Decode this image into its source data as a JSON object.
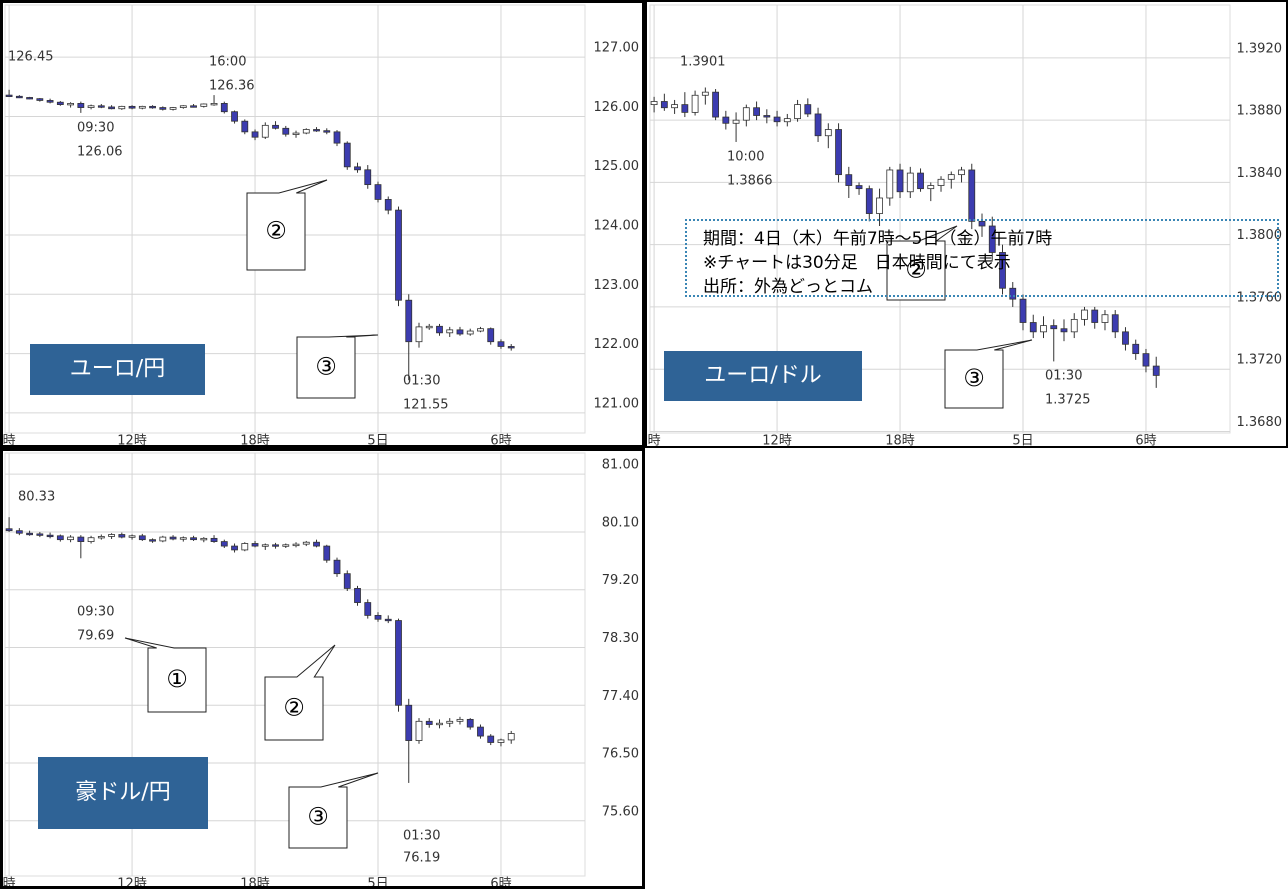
{
  "chart_data": [
    {
      "type": "candlestick",
      "title": "ユーロ/円",
      "x": [
        6,
        6.5,
        7,
        7.5,
        8,
        8.5,
        9,
        9.5,
        10,
        10.5,
        11,
        11.5,
        12,
        12.5,
        13,
        13.5,
        14,
        14.5,
        15,
        15.5,
        16,
        16.5,
        17,
        17.5,
        18,
        18.5,
        19,
        19.5,
        20,
        20.5,
        21,
        21.5,
        22,
        22.5,
        23,
        23.5,
        24,
        24.5,
        25,
        25.5,
        26,
        26.5,
        27,
        27.5,
        28,
        28.5,
        29,
        29.5,
        30,
        30.5
      ],
      "open": [
        126.36,
        126.34,
        126.32,
        126.3,
        126.27,
        126.24,
        126.2,
        126.22,
        126.15,
        126.18,
        126.16,
        126.13,
        126.17,
        126.14,
        126.17,
        126.15,
        126.12,
        126.15,
        126.18,
        126.17,
        126.21,
        126.22,
        126.08,
        125.92,
        125.74,
        125.65,
        125.85,
        125.8,
        125.7,
        125.72,
        125.78,
        125.76,
        125.74,
        125.55,
        125.15,
        125.1,
        124.85,
        124.6,
        124.42,
        122.9,
        122.2,
        122.45,
        122.46,
        122.35,
        122.4,
        122.33,
        122.38,
        122.42,
        122.2,
        122.12
      ],
      "high": [
        126.45,
        126.36,
        126.33,
        126.31,
        126.3,
        126.26,
        126.24,
        126.25,
        126.2,
        126.21,
        126.19,
        126.18,
        126.19,
        126.18,
        126.19,
        126.17,
        126.16,
        126.19,
        126.21,
        126.22,
        126.36,
        126.25,
        126.1,
        125.95,
        125.78,
        125.9,
        125.92,
        125.84,
        125.76,
        125.8,
        125.82,
        125.8,
        125.77,
        125.58,
        125.22,
        125.18,
        124.9,
        124.65,
        124.48,
        123.0,
        122.52,
        122.5,
        122.5,
        122.45,
        122.45,
        122.42,
        122.45,
        122.44,
        122.24,
        122.16
      ],
      "low": [
        126.33,
        126.31,
        126.29,
        126.25,
        126.22,
        126.18,
        126.15,
        126.06,
        126.12,
        126.14,
        126.12,
        126.11,
        126.12,
        126.12,
        126.13,
        126.1,
        126.1,
        126.13,
        126.15,
        126.15,
        126.18,
        126.05,
        125.88,
        125.7,
        125.6,
        125.62,
        125.78,
        125.66,
        125.64,
        125.7,
        125.74,
        125.7,
        125.5,
        125.1,
        125.05,
        124.78,
        124.55,
        124.35,
        122.8,
        121.55,
        122.1,
        122.4,
        122.3,
        122.28,
        122.3,
        122.3,
        122.36,
        122.15,
        122.08,
        122.05
      ],
      "close": [
        126.34,
        126.32,
        126.3,
        126.27,
        126.24,
        126.2,
        126.22,
        126.15,
        126.18,
        126.16,
        126.13,
        126.17,
        126.14,
        126.17,
        126.15,
        126.12,
        126.15,
        126.18,
        126.17,
        126.21,
        126.22,
        126.08,
        125.92,
        125.74,
        125.65,
        125.85,
        125.8,
        125.7,
        125.72,
        125.78,
        125.76,
        125.74,
        125.55,
        125.15,
        125.1,
        124.85,
        124.6,
        124.42,
        122.9,
        122.2,
        122.45,
        122.46,
        122.35,
        122.4,
        122.33,
        122.38,
        122.42,
        122.2,
        122.12,
        122.1
      ],
      "xlim": [
        5.8,
        34.1
      ],
      "xticks": [
        {
          "value": 6,
          "label": "時"
        },
        {
          "value": 12,
          "label": "12時"
        },
        {
          "value": 18,
          "label": "18時"
        },
        {
          "value": 24,
          "label": "5日"
        },
        {
          "value": 30,
          "label": "6時"
        }
      ],
      "ylim": [
        120.66,
        127.88
      ],
      "yticks": [
        {
          "value": 127,
          "label": "127.00"
        },
        {
          "value": 126,
          "label": "126.00"
        },
        {
          "value": 125,
          "label": "125.00"
        },
        {
          "value": 124,
          "label": "124.00"
        },
        {
          "value": 123,
          "label": "123.00"
        },
        {
          "value": 122,
          "label": "122.00"
        },
        {
          "value": 121,
          "label": "121.00"
        }
      ],
      "grid": true,
      "up_color": "#ffffff",
      "down_color": "#3c3cb0",
      "annotations": [
        "126.45",
        "16:00",
        "126.36",
        "09:30",
        "126.06",
        "01:30",
        "121.55"
      ],
      "callouts": [
        "②",
        "③"
      ]
    },
    {
      "type": "candlestick",
      "title": "ユーロ/ドル",
      "x": [
        6,
        6.5,
        7,
        7.5,
        8,
        8.5,
        9,
        9.5,
        10,
        10.5,
        11,
        11.5,
        12,
        12.5,
        13,
        13.5,
        14,
        14.5,
        15,
        15.5,
        16,
        16.5,
        17,
        17.5,
        18,
        18.5,
        19,
        19.5,
        20,
        20.5,
        21,
        21.5,
        22,
        22.5,
        23,
        23.5,
        24,
        24.5,
        25,
        25.5,
        26,
        26.5,
        27,
        27.5,
        28,
        28.5,
        29,
        29.5,
        30,
        30.5
      ],
      "open": [
        1.389,
        1.3892,
        1.3888,
        1.389,
        1.3885,
        1.3896,
        1.3898,
        1.3882,
        1.3878,
        1.388,
        1.3888,
        1.3883,
        1.3882,
        1.3879,
        1.3881,
        1.389,
        1.3884,
        1.387,
        1.3874,
        1.3845,
        1.3838,
        1.3836,
        1.382,
        1.383,
        1.3848,
        1.3834,
        1.3846,
        1.3836,
        1.3838,
        1.3842,
        1.3845,
        1.3848,
        1.3815,
        1.3812,
        1.3795,
        1.3772,
        1.3765,
        1.375,
        1.3744,
        1.3748,
        1.3746,
        1.3744,
        1.3752,
        1.3758,
        1.375,
        1.3755,
        1.3744,
        1.3736,
        1.373,
        1.3722
      ],
      "high": [
        1.3895,
        1.3897,
        1.3893,
        1.3898,
        1.3899,
        1.3901,
        1.39,
        1.3886,
        1.3885,
        1.389,
        1.3892,
        1.3887,
        1.3886,
        1.3884,
        1.3893,
        1.3894,
        1.3888,
        1.3878,
        1.3878,
        1.385,
        1.384,
        1.3838,
        1.3836,
        1.385,
        1.3852,
        1.385,
        1.3849,
        1.384,
        1.3844,
        1.3847,
        1.385,
        1.3852,
        1.382,
        1.3818,
        1.38,
        1.3776,
        1.3768,
        1.3755,
        1.3754,
        1.3752,
        1.3752,
        1.3756,
        1.376,
        1.376,
        1.3758,
        1.3758,
        1.3747,
        1.3739,
        1.3733,
        1.3728
      ],
      "low": [
        1.3885,
        1.3886,
        1.3884,
        1.3882,
        1.3883,
        1.389,
        1.388,
        1.3874,
        1.3866,
        1.3876,
        1.388,
        1.3878,
        1.3876,
        1.3876,
        1.3879,
        1.3882,
        1.3866,
        1.3862,
        1.384,
        1.383,
        1.3832,
        1.3815,
        1.3812,
        1.3825,
        1.383,
        1.383,
        1.3834,
        1.3828,
        1.3834,
        1.3836,
        1.384,
        1.381,
        1.3805,
        1.379,
        1.3768,
        1.376,
        1.3745,
        1.374,
        1.374,
        1.3725,
        1.3738,
        1.374,
        1.3748,
        1.3746,
        1.3745,
        1.374,
        1.3732,
        1.3726,
        1.3718,
        1.3708
      ],
      "close": [
        1.3892,
        1.3888,
        1.389,
        1.3885,
        1.3896,
        1.3898,
        1.3882,
        1.3878,
        1.388,
        1.3888,
        1.3883,
        1.3882,
        1.3879,
        1.3881,
        1.389,
        1.3884,
        1.387,
        1.3874,
        1.3845,
        1.3838,
        1.3836,
        1.382,
        1.383,
        1.3848,
        1.3834,
        1.3846,
        1.3836,
        1.3838,
        1.3842,
        1.3845,
        1.3848,
        1.3815,
        1.3812,
        1.3795,
        1.3772,
        1.3765,
        1.375,
        1.3744,
        1.3748,
        1.3746,
        1.3744,
        1.3752,
        1.3758,
        1.375,
        1.3755,
        1.3744,
        1.3736,
        1.373,
        1.3722,
        1.3716
      ],
      "xlim": [
        5.8,
        34.1
      ],
      "xticks": [
        {
          "value": 6,
          "label": "時"
        },
        {
          "value": 12,
          "label": "12時"
        },
        {
          "value": 18,
          "label": "18時"
        },
        {
          "value": 24,
          "label": "5日"
        },
        {
          "value": 30,
          "label": "6時"
        }
      ],
      "ylim": [
        1.3679,
        1.3954
      ],
      "yticks": [
        {
          "value": 1.392,
          "label": "1.3920"
        },
        {
          "value": 1.388,
          "label": "1.3880"
        },
        {
          "value": 1.384,
          "label": "1.3840"
        },
        {
          "value": 1.38,
          "label": "1.3800"
        },
        {
          "value": 1.376,
          "label": "1.3760"
        },
        {
          "value": 1.372,
          "label": "1.3720"
        },
        {
          "value": 1.368,
          "label": "1.3680"
        }
      ],
      "grid": true,
      "up_color": "#ffffff",
      "down_color": "#3c3cb0",
      "annotations": [
        "1.3901",
        "10:00",
        "1.3866",
        "01:30",
        "1.3725"
      ],
      "callouts": [
        "②",
        "③"
      ]
    },
    {
      "type": "candlestick",
      "title": "豪ドル/円",
      "x": [
        6,
        6.5,
        7,
        7.5,
        8,
        8.5,
        9,
        9.5,
        10,
        10.5,
        11,
        11.5,
        12,
        12.5,
        13,
        13.5,
        14,
        14.5,
        15,
        15.5,
        16,
        16.5,
        17,
        17.5,
        18,
        18.5,
        19,
        19.5,
        20,
        20.5,
        21,
        21.5,
        22,
        22.5,
        23,
        23.5,
        24,
        24.5,
        25,
        25.5,
        26,
        26.5,
        27,
        27.5,
        28,
        28.5,
        29,
        29.5,
        30,
        30.5
      ],
      "open": [
        80.15,
        80.12,
        80.08,
        80.07,
        80.05,
        80.04,
        79.98,
        80.02,
        79.95,
        80.01,
        80.03,
        80.06,
        80.02,
        80.04,
        79.98,
        79.96,
        80.02,
        79.99,
        80.01,
        79.98,
        80.0,
        79.95,
        79.88,
        79.82,
        79.92,
        79.88,
        79.9,
        79.89,
        79.9,
        79.91,
        79.94,
        79.88,
        79.66,
        79.45,
        79.22,
        79.0,
        78.8,
        78.74,
        78.72,
        77.4,
        76.85,
        77.15,
        77.1,
        77.12,
        77.15,
        77.18,
        77.06,
        76.92,
        76.82,
        76.86
      ],
      "high": [
        80.33,
        80.16,
        80.12,
        80.1,
        80.09,
        80.06,
        80.05,
        80.05,
        80.04,
        80.06,
        80.08,
        80.09,
        80.06,
        80.07,
        80.0,
        80.04,
        80.05,
        80.03,
        80.04,
        80.02,
        80.05,
        79.98,
        79.92,
        79.94,
        79.96,
        79.92,
        79.93,
        79.92,
        79.94,
        79.96,
        79.98,
        79.9,
        79.7,
        79.5,
        79.26,
        79.05,
        78.85,
        78.8,
        78.75,
        77.5,
        77.2,
        77.2,
        77.18,
        77.2,
        77.22,
        77.2,
        77.1,
        76.95,
        76.88,
        77.0
      ],
      "low": [
        80.1,
        80.05,
        80.04,
        80.02,
        80.0,
        79.95,
        79.94,
        79.69,
        79.92,
        79.98,
        79.99,
        80.0,
        79.98,
        79.96,
        79.93,
        79.94,
        79.97,
        79.95,
        79.96,
        79.94,
        79.93,
        79.85,
        79.78,
        79.8,
        79.86,
        79.82,
        79.84,
        79.85,
        79.86,
        79.88,
        79.86,
        79.62,
        79.4,
        79.18,
        78.95,
        78.75,
        78.7,
        78.68,
        77.3,
        76.19,
        76.8,
        77.05,
        77.04,
        77.06,
        77.1,
        77.02,
        76.88,
        76.78,
        76.76,
        76.8
      ],
      "close": [
        80.12,
        80.08,
        80.07,
        80.05,
        80.04,
        79.98,
        80.02,
        79.95,
        80.01,
        80.03,
        80.06,
        80.02,
        80.04,
        79.98,
        79.96,
        80.02,
        79.99,
        80.01,
        79.98,
        80.0,
        79.95,
        79.88,
        79.82,
        79.92,
        79.88,
        79.9,
        79.89,
        79.9,
        79.91,
        79.94,
        79.88,
        79.66,
        79.45,
        79.22,
        79.0,
        78.8,
        78.74,
        78.72,
        77.4,
        76.85,
        77.15,
        77.1,
        77.12,
        77.15,
        77.18,
        77.06,
        76.92,
        76.82,
        76.86,
        76.96
      ],
      "xlim": [
        5.8,
        34.1
      ],
      "xticks": [
        {
          "value": 6,
          "label": "時"
        },
        {
          "value": 12,
          "label": "12時"
        },
        {
          "value": 18,
          "label": "18時"
        },
        {
          "value": 24,
          "label": "5日"
        },
        {
          "value": 30,
          "label": "6時"
        }
      ],
      "ylim": [
        74.74,
        81.33
      ],
      "yticks": [
        {
          "value": 81,
          "label": "81.00"
        },
        {
          "value": 80.1,
          "label": "80.10"
        },
        {
          "value": 79.2,
          "label": "79.20"
        },
        {
          "value": 78.3,
          "label": "78.30"
        },
        {
          "value": 77.4,
          "label": "77.40"
        },
        {
          "value": 76.5,
          "label": "76.50"
        },
        {
          "value": 75.6,
          "label": "75.60"
        }
      ],
      "grid": true,
      "up_color": "#ffffff",
      "down_color": "#3c3cb0",
      "annotations": [
        "80.33",
        "09:30",
        "79.69",
        "01:30",
        "76.19"
      ],
      "callouts": [
        "①",
        "②",
        "③"
      ]
    }
  ],
  "note": {
    "lines": [
      "期間：4日（木）午前7時～5日（金）午前7時",
      "※チャートは30分足　日本時間にて表示",
      "出所：外為どっとコム"
    ]
  }
}
